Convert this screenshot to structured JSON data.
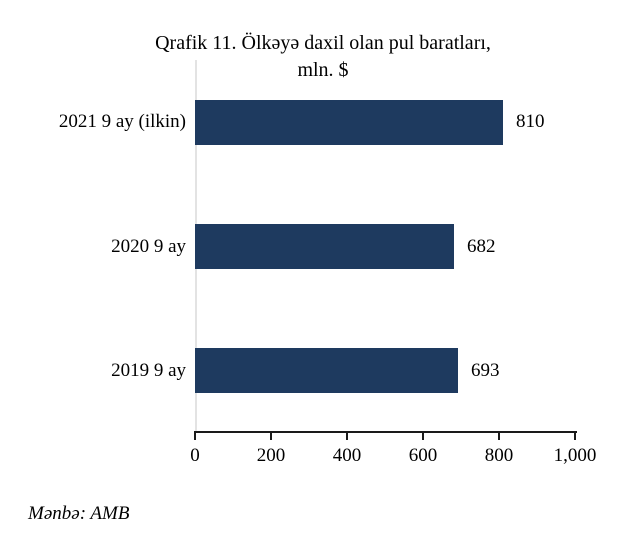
{
  "title": {
    "line1": "Qrafik 11. Ölkəyə daxil olan pul baratları,",
    "line2": "mln. $"
  },
  "source": "Mənbə: AMB",
  "colors": {
    "bar": "#1E3A5F",
    "axis": "#1a1a1a",
    "plot_border": "#e3e3e3",
    "text": "#000000"
  },
  "chart_data": {
    "type": "bar",
    "orientation": "horizontal",
    "title": "Qrafik 11. Ölkəyə daxil olan pul baratları, mln. $",
    "categories": [
      "2021 9 ay (ilkin)",
      "2020 9 ay",
      "2019 9 ay"
    ],
    "values": [
      810,
      682,
      693
    ],
    "value_labels": [
      "810",
      "682",
      "693"
    ],
    "xlim": [
      0,
      1000
    ],
    "x_tick_values": [
      0,
      200,
      400,
      600,
      800,
      1000
    ],
    "x_tick_labels": [
      "0",
      "200",
      "400",
      "600",
      "800",
      "1,000"
    ],
    "grid": false,
    "legend": false,
    "data_labels_position": "right-of-bar"
  }
}
